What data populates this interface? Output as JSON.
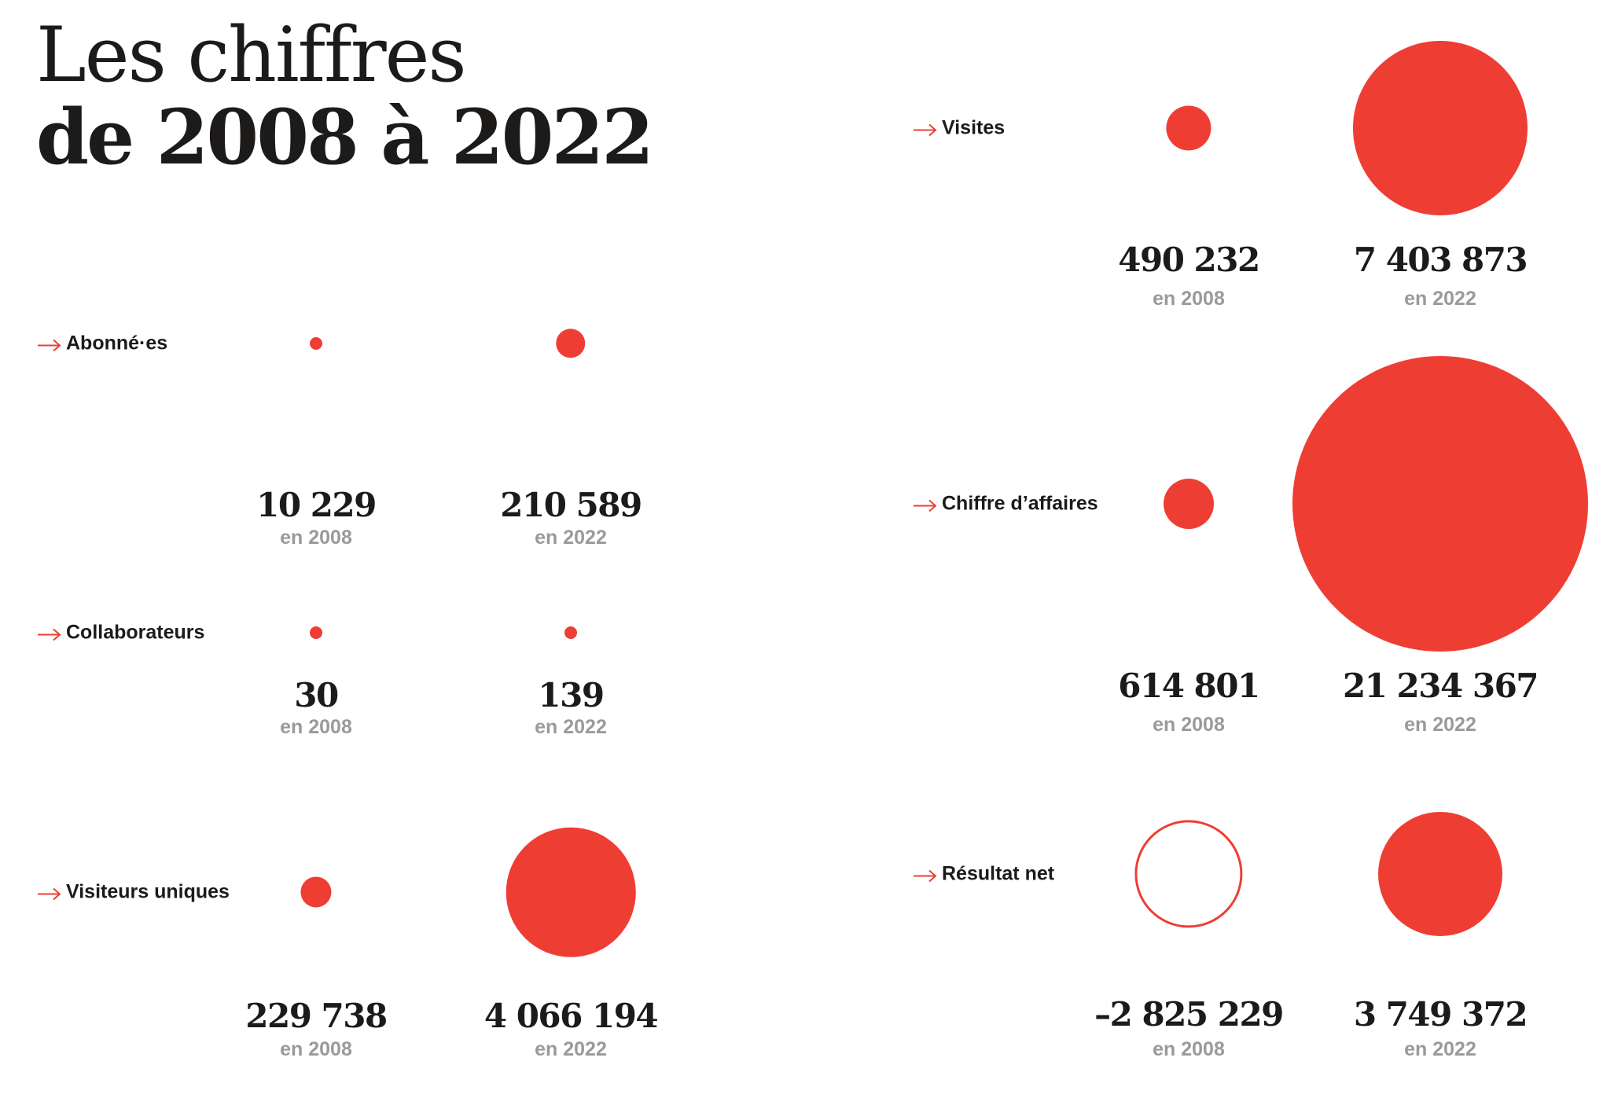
{
  "title": {
    "line1": "Les chiffres",
    "line2": "de 2008 à 2022"
  },
  "colors": {
    "accent": "#ee3e34",
    "text": "#1d1a1a",
    "muted": "#9a9a9a"
  },
  "chart_data": {
    "type": "bubble",
    "title": "Les chiffres de 2008 à 2022",
    "series_labels": [
      "en 2008",
      "en 2022"
    ],
    "metrics": [
      {
        "label": "Abonné·es",
        "v2008": 10229,
        "v2022": 210589,
        "t2008": "10 229",
        "t2022": "210 589",
        "y2008": "en 2008",
        "y2022": "en 2022"
      },
      {
        "label": "Collaborateurs",
        "v2008": 30,
        "v2022": 139,
        "t2008": "30",
        "t2022": "139",
        "y2008": "en 2008",
        "y2022": "en 2022"
      },
      {
        "label": "Visiteurs uniques",
        "v2008": 229738,
        "v2022": 4066194,
        "t2008": "229 738",
        "t2022": "4 066 194",
        "y2008": "en 2008",
        "y2022": "en 2022"
      },
      {
        "label": "Visites",
        "v2008": 490232,
        "v2022": 7403873,
        "t2008": "490 232",
        "t2022": "7 403 873",
        "y2008": "en 2008",
        "y2022": "en 2022"
      },
      {
        "label": "Chiffre d’affaires",
        "v2008": 614801,
        "v2022": 21234367,
        "t2008": "614 801",
        "t2022": "21 234 367",
        "y2008": "en 2008",
        "y2022": "en 2022"
      },
      {
        "label": "Résultat net",
        "v2008": -2825229,
        "v2022": 3749372,
        "t2008": "–2 825 229",
        "t2022": "3 749 372",
        "y2008": "en 2008",
        "y2022": "en 2022"
      }
    ]
  }
}
